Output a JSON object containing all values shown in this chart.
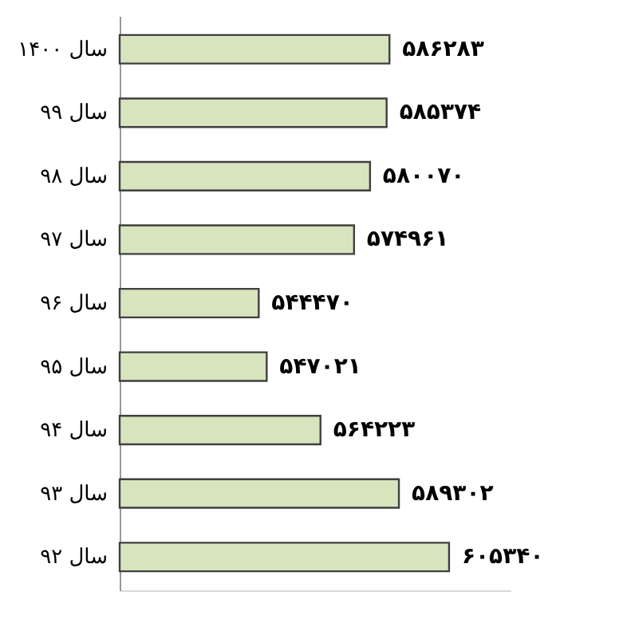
{
  "chart_data": {
    "type": "bar",
    "orientation": "horizontal",
    "categories": [
      "سال ۱۴۰۰",
      "سال ۹۹",
      "سال ۹۸",
      "سال ۹۷",
      "سال ۹۶",
      "سال ۹۵",
      "سال ۹۴",
      "سال ۹۳",
      "سال ۹۲"
    ],
    "values": [
      586283,
      585374,
      580070,
      574961,
      544470,
      547021,
      564223,
      589302,
      605340
    ],
    "value_labels": [
      "۵۸۶۲۸۳",
      "۵۸۵۳۷۴",
      "۵۸۰۰۷۰",
      "۵۷۴۹۶۱",
      "۵۴۴۴۷۰",
      "۵۴۷۰۲۱",
      "۵۶۴۲۲۳",
      "۵۸۹۳۰۲",
      "۶۰۵۳۴۰"
    ],
    "color": "#d7e4bd",
    "xlim": [
      500000,
      625000
    ],
    "tick_labels": "y",
    "grid": false
  }
}
